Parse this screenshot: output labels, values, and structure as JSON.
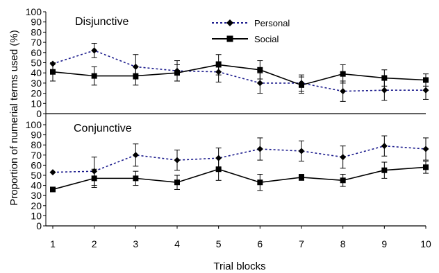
{
  "chart_data": {
    "type": "line",
    "xlabel": "Trial blocks",
    "ylabel": "Proportion of numerial terms used (%)",
    "x": [
      1,
      2,
      3,
      4,
      5,
      6,
      7,
      8,
      9,
      10
    ],
    "ylim": [
      0,
      100
    ],
    "ytick_step": 10,
    "legend_position": "top-center",
    "colors": {
      "personal": "#1a1a8c",
      "social": "#000000"
    },
    "panels": [
      {
        "title": "Disjunctive",
        "series": [
          {
            "name": "Personal",
            "marker": "diamond",
            "line": "dotted",
            "values": [
              49,
              62,
              46,
              42,
              41,
              30,
              30,
              22,
              23,
              23
            ],
            "errors": [
              0,
              7,
              12,
              10,
              10,
              10,
              8,
              10,
              10,
              9
            ]
          },
          {
            "name": "Social",
            "marker": "square",
            "line": "solid",
            "values": [
              41,
              37,
              37,
              40,
              48,
              43,
              28,
              39,
              35,
              33
            ],
            "errors": [
              9,
              9,
              9,
              8,
              10,
              9,
              8,
              9,
              8,
              6
            ]
          }
        ]
      },
      {
        "title": "Conjunctive",
        "series": [
          {
            "name": "Personal",
            "marker": "diamond",
            "line": "dotted",
            "values": [
              53,
              54,
              70,
              65,
              67,
              76,
              74,
              68,
              79,
              76
            ],
            "errors": [
              0,
              14,
              11,
              10,
              10,
              11,
              10,
              11,
              10,
              11
            ]
          },
          {
            "name": "Social",
            "marker": "square",
            "line": "solid",
            "values": [
              36,
              47,
              47,
              43,
              56,
              43,
              48,
              45,
              55,
              58
            ],
            "errors": [
              0,
              9,
              7,
              7,
              11,
              8,
              3,
              6,
              8,
              6
            ]
          }
        ]
      }
    ]
  }
}
